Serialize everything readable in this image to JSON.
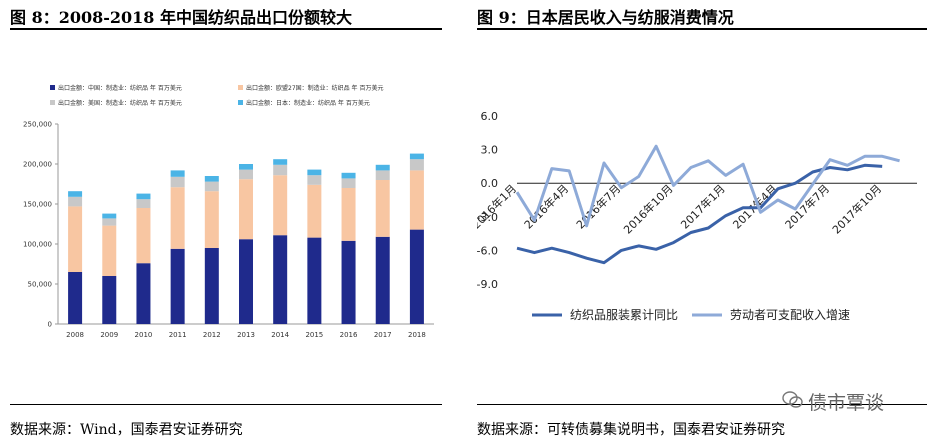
{
  "left": {
    "figure_title": "图 8：2008-2018 年中国纺织品出口份额较大",
    "source": "数据来源：Wind，国泰君安证券研究"
  },
  "right": {
    "figure_title": "图 9：日本居民收入与纺服消费情况",
    "source": "数据来源：可转债募集说明书，国泰君安证券研究"
  },
  "watermark": "债市覃谈",
  "colors": {
    "china": "#1f2a8c",
    "eu": "#f8c6a2",
    "us": "#c8c8c8",
    "japan": "#4bb4e6",
    "textile": "#3a62a8",
    "income": "#8eaad8"
  },
  "chart_data": [
    {
      "type": "bar",
      "stacked": true,
      "categories": [
        "2008",
        "2009",
        "2010",
        "2011",
        "2012",
        "2013",
        "2014",
        "2015",
        "2016",
        "2017",
        "2018"
      ],
      "series": [
        {
          "name": "出口金额：中国：制造业：纺织品 年 百万美元",
          "values": [
            65000,
            60000,
            76000,
            94000,
            95000,
            106000,
            111000,
            108000,
            104000,
            109000,
            118000
          ]
        },
        {
          "name": "出口金额：欧盟27国：制造业：纺织品 年 百万美元",
          "values": [
            82000,
            63000,
            69000,
            77000,
            71000,
            75000,
            75000,
            66000,
            66000,
            71000,
            74000
          ]
        },
        {
          "name": "出口金额：美国：制造业：纺织品 年 百万美元",
          "values": [
            12000,
            9000,
            11000,
            13000,
            12000,
            12000,
            13000,
            12000,
            12000,
            12000,
            14000
          ]
        },
        {
          "name": "出口金额：日本：制造业：纺织品 年 百万美元",
          "values": [
            7000,
            6000,
            7000,
            8000,
            7000,
            7000,
            7000,
            7000,
            7000,
            7000,
            7000
          ]
        }
      ],
      "yticks": [
        "0",
        "50,000",
        "100,000",
        "150,000",
        "200,000",
        "250,000"
      ],
      "ylim": [
        0,
        250000
      ],
      "legend_position": "top"
    },
    {
      "type": "line",
      "x": [
        "2016年1月",
        "2016年2月",
        "2016年3月",
        "2016年4月",
        "2016年5月",
        "2016年6月",
        "2016年7月",
        "2016年8月",
        "2016年9月",
        "2016年10月",
        "2016年11月",
        "2016年12月",
        "2017年1月",
        "2017年2月",
        "2017年3月",
        "2017年4月",
        "2017年5月",
        "2017年6月",
        "2017年7月",
        "2017年8月",
        "2017年9月",
        "2017年10月",
        "2017年11月",
        "2017年12月"
      ],
      "xticks": [
        "2016年1月",
        "2016年4月",
        "2016年7月",
        "2016年10月",
        "2017年1月",
        "2017年4月",
        "2017年7月",
        "2017年10月"
      ],
      "series": [
        {
          "name": "纺织品服装累计同比",
          "values": [
            -5.8,
            -6.2,
            -5.8,
            -6.2,
            -6.7,
            -7.1,
            -6.0,
            -5.6,
            -5.9,
            -5.3,
            -4.4,
            -4.0,
            -2.9,
            -2.2,
            -2.2,
            -0.5,
            0.0,
            1.0,
            1.4,
            1.2,
            1.6,
            1.5,
            null,
            null
          ]
        },
        {
          "name": "劳动者可支配收入增速",
          "values": [
            -0.8,
            -3.3,
            1.3,
            1.1,
            -3.8,
            1.8,
            -0.4,
            0.6,
            3.3,
            -0.2,
            1.4,
            2.0,
            0.7,
            1.7,
            -2.6,
            -1.5,
            -2.3,
            -0.1,
            2.1,
            1.6,
            2.4,
            2.4,
            2.0,
            null
          ]
        }
      ],
      "yticks": [
        "6.0",
        "3.0",
        "0.0",
        "-3.0",
        "-6.0",
        "-9.0"
      ],
      "ylim": [
        -9,
        6
      ],
      "legend_position": "bottom"
    }
  ]
}
